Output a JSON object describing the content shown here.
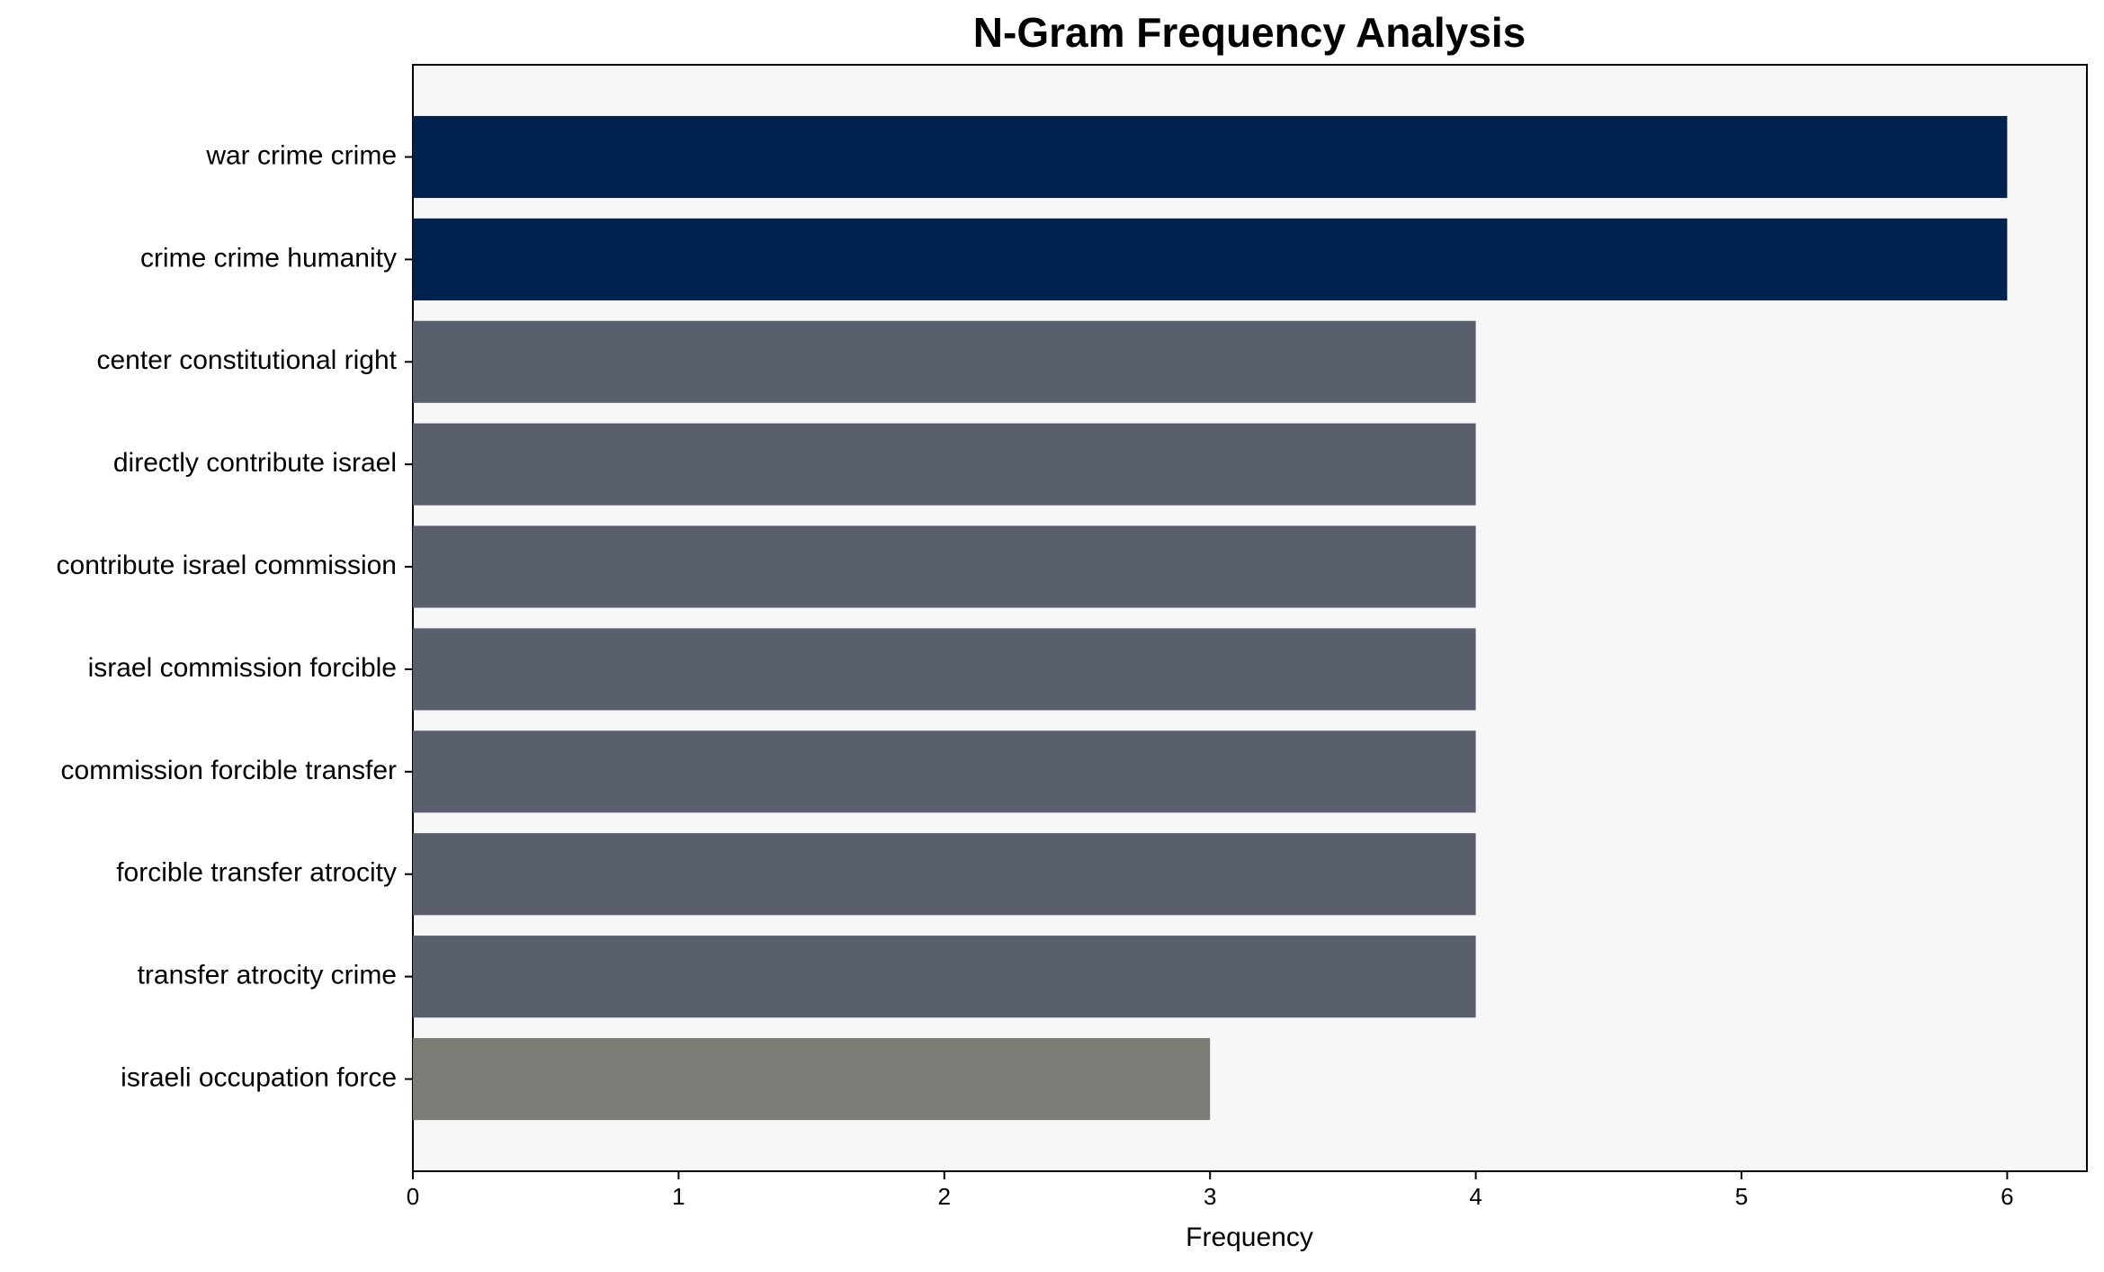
{
  "chart_data": {
    "type": "bar",
    "orientation": "horizontal",
    "title": "N-Gram Frequency Analysis",
    "x_label": "Frequency",
    "categories": [
      "war crime crime",
      "crime crime humanity",
      "center constitutional right",
      "directly contribute israel",
      "contribute israel commission",
      "israel commission forcible",
      "commission forcible transfer",
      "forcible transfer atrocity",
      "transfer atrocity crime",
      "israeli occupation force"
    ],
    "values": [
      6,
      6,
      4,
      4,
      4,
      4,
      4,
      4,
      4,
      3
    ],
    "colors": [
      "#00224e",
      "#00224e",
      "#5a5f6e",
      "#5a5f6e",
      "#5a5f6e",
      "#5a5f6e",
      "#5a5f6e",
      "#5a5f6e",
      "#5a5f6e",
      "#7d7c76"
    ],
    "xlim": [
      0,
      6.3
    ],
    "xticks": [
      0,
      1,
      2,
      3,
      4,
      5,
      6
    ],
    "grid": false
  }
}
